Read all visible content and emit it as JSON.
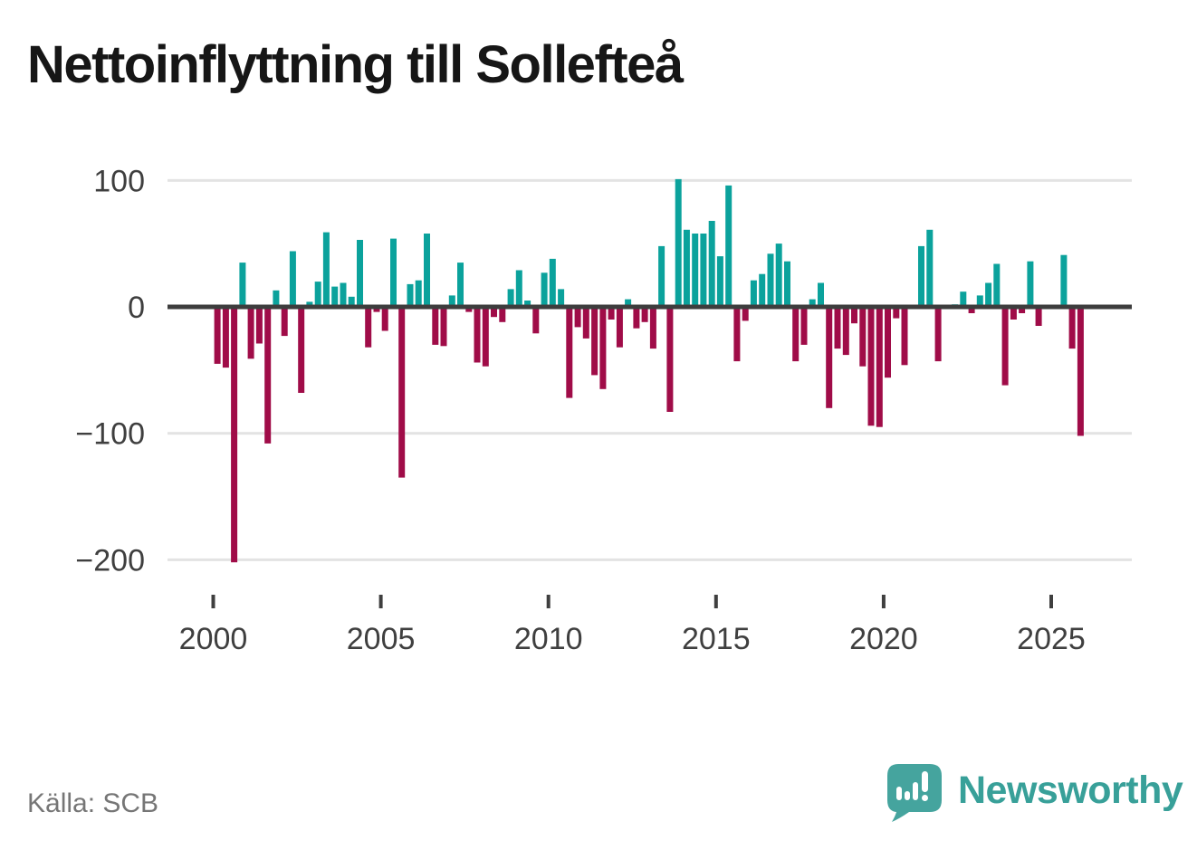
{
  "title": "Nettoinflyttning till Sollefteå",
  "source": "Källa: SCB",
  "brand": {
    "name": "Newsworthy"
  },
  "colors": {
    "positive": "#0ba29c",
    "negative": "#a00c48",
    "gridline": "#e3e3e3",
    "zero_line": "#3d3d3d",
    "axis_text": "#3f3f3f",
    "title_text": "#161616",
    "source_text": "#767676",
    "logo_teal": "#45a49e",
    "background": "#ffffff"
  },
  "chart_data": {
    "type": "bar",
    "title": "Nettoinflyttning till Sollefteå",
    "frequency": "quarterly",
    "x_tick_years": [
      2000,
      2005,
      2010,
      2015,
      2020,
      2025
    ],
    "x_tick_labels": [
      "2000",
      "2005",
      "2010",
      "2015",
      "2020",
      "2025"
    ],
    "y_tick_values": [
      100,
      0,
      -100,
      -200
    ],
    "y_tick_labels": [
      "100",
      "0",
      "−100",
      "−200"
    ],
    "ylim": [
      -215,
      110
    ],
    "grid": true,
    "legend": false,
    "categories": [
      "2000 Q1",
      "2000 Q2",
      "2000 Q3",
      "2000 Q4",
      "2001 Q1",
      "2001 Q2",
      "2001 Q3",
      "2001 Q4",
      "2002 Q1",
      "2002 Q2",
      "2002 Q3",
      "2002 Q4",
      "2003 Q1",
      "2003 Q2",
      "2003 Q3",
      "2003 Q4",
      "2004 Q1",
      "2004 Q2",
      "2004 Q3",
      "2004 Q4",
      "2005 Q1",
      "2005 Q2",
      "2005 Q3",
      "2005 Q4",
      "2006 Q1",
      "2006 Q2",
      "2006 Q3",
      "2006 Q4",
      "2007 Q1",
      "2007 Q2",
      "2007 Q3",
      "2007 Q4",
      "2008 Q1",
      "2008 Q2",
      "2008 Q3",
      "2008 Q4",
      "2009 Q1",
      "2009 Q2",
      "2009 Q3",
      "2009 Q4",
      "2010 Q1",
      "2010 Q2",
      "2010 Q3",
      "2010 Q4",
      "2011 Q1",
      "2011 Q2",
      "2011 Q3",
      "2011 Q4",
      "2012 Q1",
      "2012 Q2",
      "2012 Q3",
      "2012 Q4",
      "2013 Q1",
      "2013 Q2",
      "2013 Q3",
      "2013 Q4",
      "2014 Q1",
      "2014 Q2",
      "2014 Q3",
      "2014 Q4",
      "2015 Q1",
      "2015 Q2",
      "2015 Q3",
      "2015 Q4",
      "2016 Q1",
      "2016 Q2",
      "2016 Q3",
      "2016 Q4",
      "2017 Q1",
      "2017 Q2",
      "2017 Q3",
      "2017 Q4",
      "2018 Q1",
      "2018 Q2",
      "2018 Q3",
      "2018 Q4",
      "2019 Q1",
      "2019 Q2",
      "2019 Q3",
      "2019 Q4",
      "2020 Q1",
      "2020 Q2",
      "2020 Q3",
      "2020 Q4",
      "2021 Q1",
      "2021 Q2",
      "2021 Q3",
      "2021 Q4",
      "2022 Q1",
      "2022 Q2",
      "2022 Q3",
      "2022 Q4",
      "2023 Q1",
      "2023 Q2",
      "2023 Q3",
      "2023 Q4",
      "2024 Q1",
      "2024 Q2",
      "2024 Q3",
      "2024 Q4",
      "2025 Q1",
      "2025 Q2",
      "2025 Q3",
      "2025 Q4"
    ],
    "values": [
      -45,
      -48,
      -202,
      35,
      -41,
      -29,
      -108,
      13,
      -23,
      44,
      -68,
      4,
      20,
      59,
      16,
      19,
      8,
      53,
      -32,
      -4,
      -19,
      54,
      -135,
      18,
      21,
      58,
      -30,
      -31,
      9,
      35,
      -4,
      -44,
      -47,
      -8,
      -12,
      14,
      29,
      5,
      -21,
      27,
      38,
      14,
      -72,
      -16,
      -25,
      -54,
      -65,
      -10,
      -32,
      6,
      -17,
      -12,
      -33,
      48,
      -83,
      101,
      61,
      58,
      58,
      68,
      40,
      96,
      -43,
      -11,
      21,
      26,
      42,
      50,
      36,
      -43,
      -30,
      6,
      19,
      -80,
      -33,
      -38,
      -13,
      -47,
      -94,
      -95,
      -56,
      -9,
      -46,
      0,
      48,
      61,
      -43,
      0,
      2,
      12,
      -5,
      9,
      19,
      34,
      -62,
      -10,
      -5,
      36,
      -15,
      0,
      0,
      41,
      -33,
      -102
    ]
  }
}
